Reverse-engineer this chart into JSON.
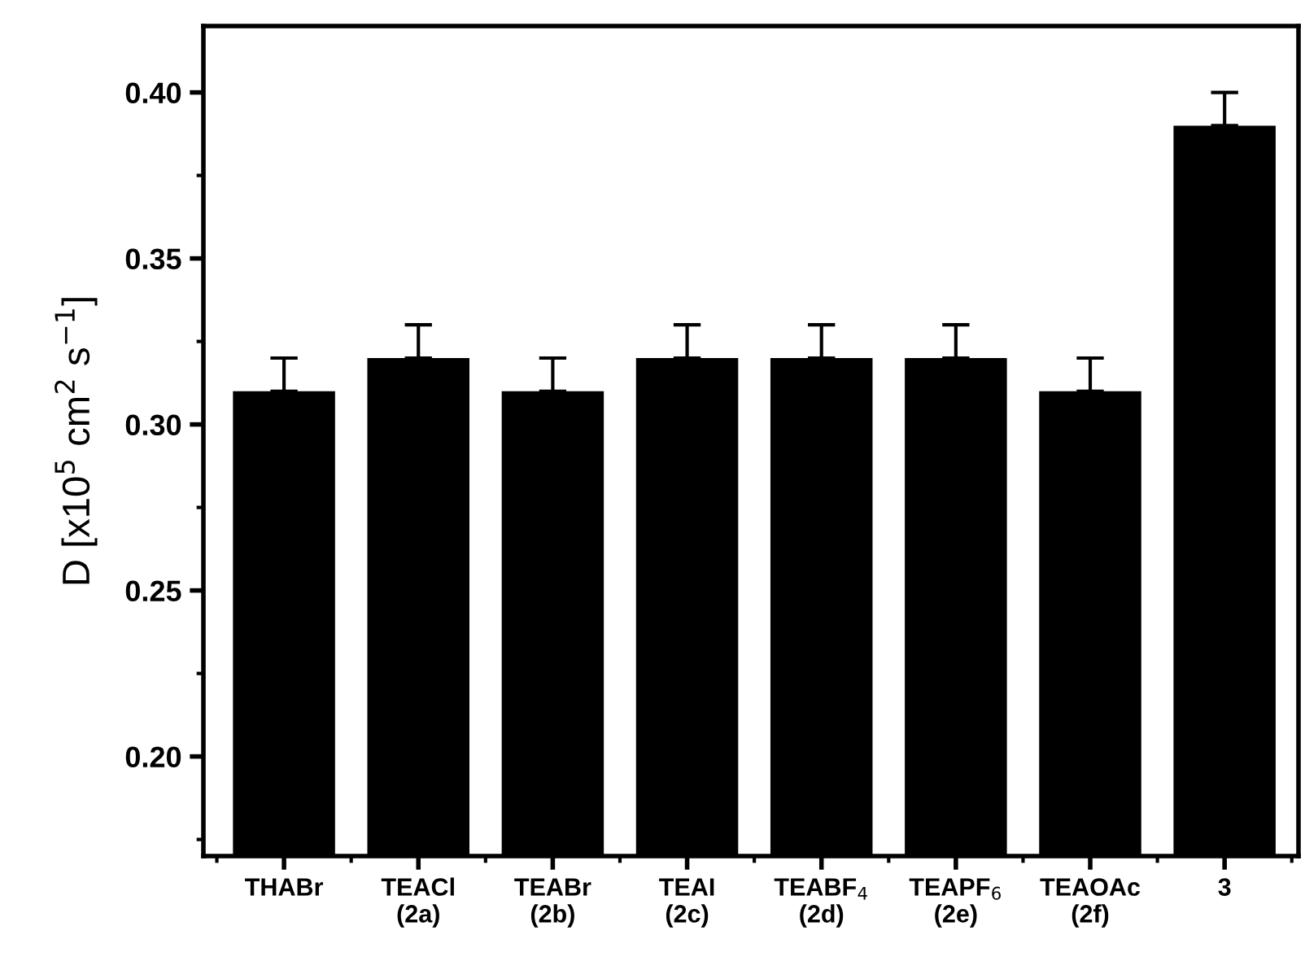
{
  "chart_data": {
    "type": "bar",
    "ylabel": "D [x10$^{5}$ cm$^{2}$ s$^{−1}$]",
    "categories": [
      "THABr",
      "TEACl\n(2a)",
      "TEABr\n(2b)",
      "TEAI\n(2c)",
      "TEABF$_{4}$\n(2d)",
      "TEAPF$_{6}$\n(2e)",
      "TEAOAc\n(2f)",
      "3"
    ],
    "values": [
      0.31,
      0.32,
      0.31,
      0.32,
      0.32,
      0.32,
      0.31,
      0.39
    ],
    "errors": [
      [
        0.31,
        0.32
      ],
      [
        0.32,
        0.33
      ],
      [
        0.31,
        0.32
      ],
      [
        0.32,
        0.33
      ],
      [
        0.32,
        0.33
      ],
      [
        0.32,
        0.33
      ],
      [
        0.31,
        0.32
      ],
      [
        0.39,
        0.4
      ]
    ],
    "color": "#000000",
    "ylim": [
      0.17,
      0.42
    ],
    "yticks": [
      {
        "value": 0.2,
        "label": "0.20"
      },
      0.25,
      {
        "value": 0.3,
        "label": "0.30"
      },
      0.35,
      {
        "value": 0.4,
        "label": "0.40"
      }
    ],
    "grid": false,
    "legend": false
  }
}
